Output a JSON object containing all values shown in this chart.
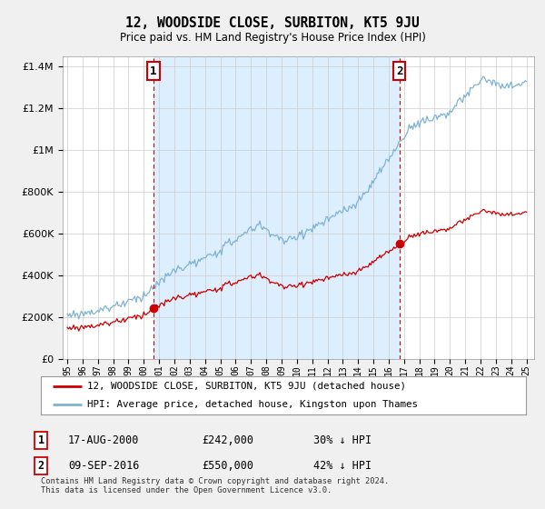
{
  "title": "12, WOODSIDE CLOSE, SURBITON, KT5 9JU",
  "subtitle": "Price paid vs. HM Land Registry's House Price Index (HPI)",
  "legend_line1": "12, WOODSIDE CLOSE, SURBITON, KT5 9JU (detached house)",
  "legend_line2": "HPI: Average price, detached house, Kingston upon Thames",
  "annotation1_label": "1",
  "annotation1_date": "17-AUG-2000",
  "annotation1_price": "£242,000",
  "annotation1_hpi": "30% ↓ HPI",
  "annotation2_label": "2",
  "annotation2_date": "09-SEP-2016",
  "annotation2_price": "£550,000",
  "annotation2_hpi": "42% ↓ HPI",
  "footnote": "Contains HM Land Registry data © Crown copyright and database right 2024.\nThis data is licensed under the Open Government Licence v3.0.",
  "sale1_year": 2000.63,
  "sale1_price": 242000,
  "sale2_year": 2016.69,
  "sale2_price": 550000,
  "red_color": "#cc0000",
  "blue_color": "#7fb3d3",
  "shade_color": "#ddeeff",
  "dashed_color": "#cc0000",
  "ylim_min": 0,
  "ylim_max": 1450000,
  "xlim_min": 1994.7,
  "xlim_max": 2025.5,
  "background_color": "#f0f0f0",
  "plot_bg_color": "#ffffff",
  "grid_color": "#cccccc"
}
